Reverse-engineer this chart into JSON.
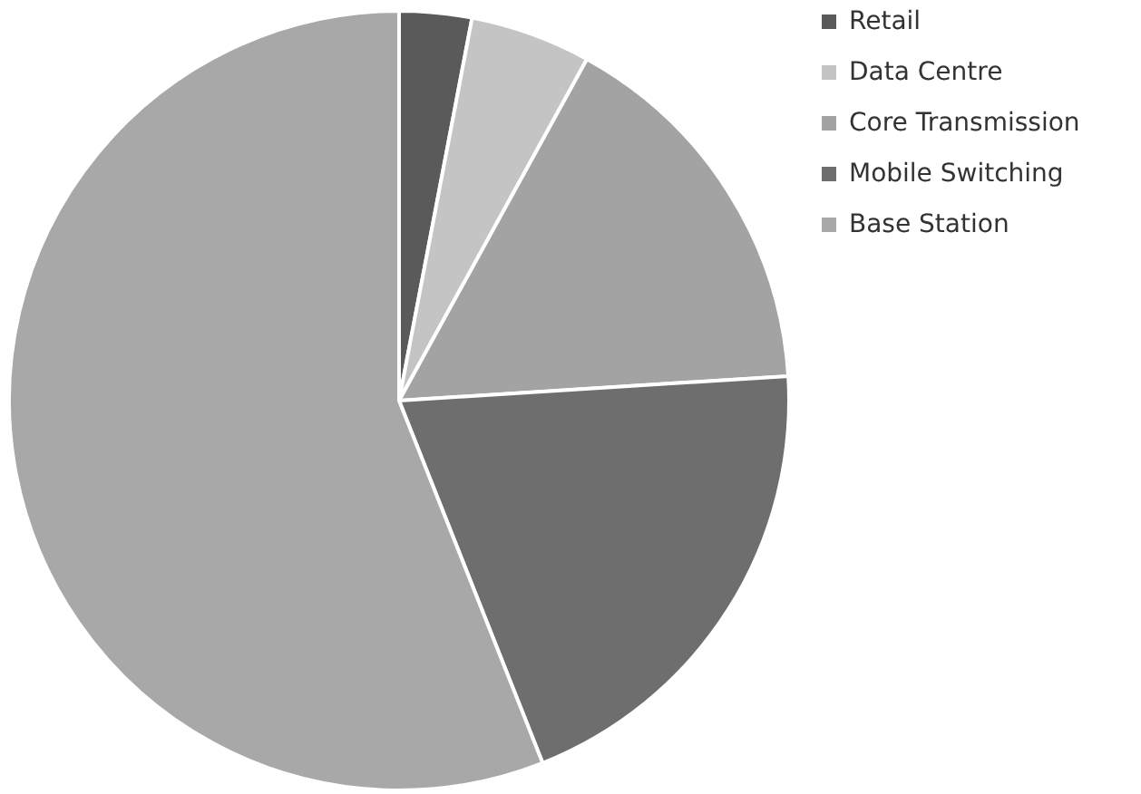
{
  "chart_data": {
    "type": "pie",
    "categories": [
      "Retail",
      "Data Centre",
      "Core Transmission",
      "Mobile Switching",
      "Base Station"
    ],
    "values": [
      3,
      5,
      16,
      20,
      56
    ],
    "colors": [
      "#5a5a5a",
      "#c4c4c4",
      "#a3a3a3",
      "#6e6e6e",
      "#a8a8a8"
    ],
    "legend": "right"
  }
}
